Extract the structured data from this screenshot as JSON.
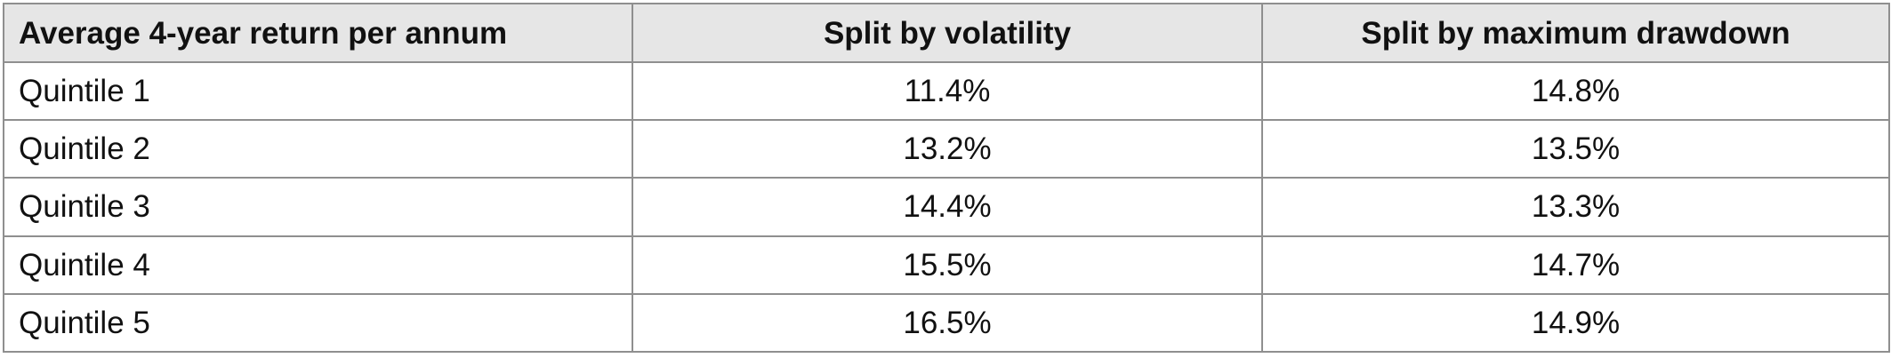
{
  "table": {
    "headers": [
      "Average 4-year return per annum",
      "Split by volatility",
      "Split by maximum drawdown"
    ],
    "rows": [
      {
        "label": "Quintile 1",
        "volatility": "11.4%",
        "max_drawdown": "14.8%"
      },
      {
        "label": "Quintile 2",
        "volatility": "13.2%",
        "max_drawdown": "13.5%"
      },
      {
        "label": "Quintile 3",
        "volatility": "14.4%",
        "max_drawdown": "13.3%"
      },
      {
        "label": "Quintile 4",
        "volatility": "15.5%",
        "max_drawdown": "14.7%"
      },
      {
        "label": "Quintile 5",
        "volatility": "16.5%",
        "max_drawdown": "14.9%"
      }
    ]
  }
}
